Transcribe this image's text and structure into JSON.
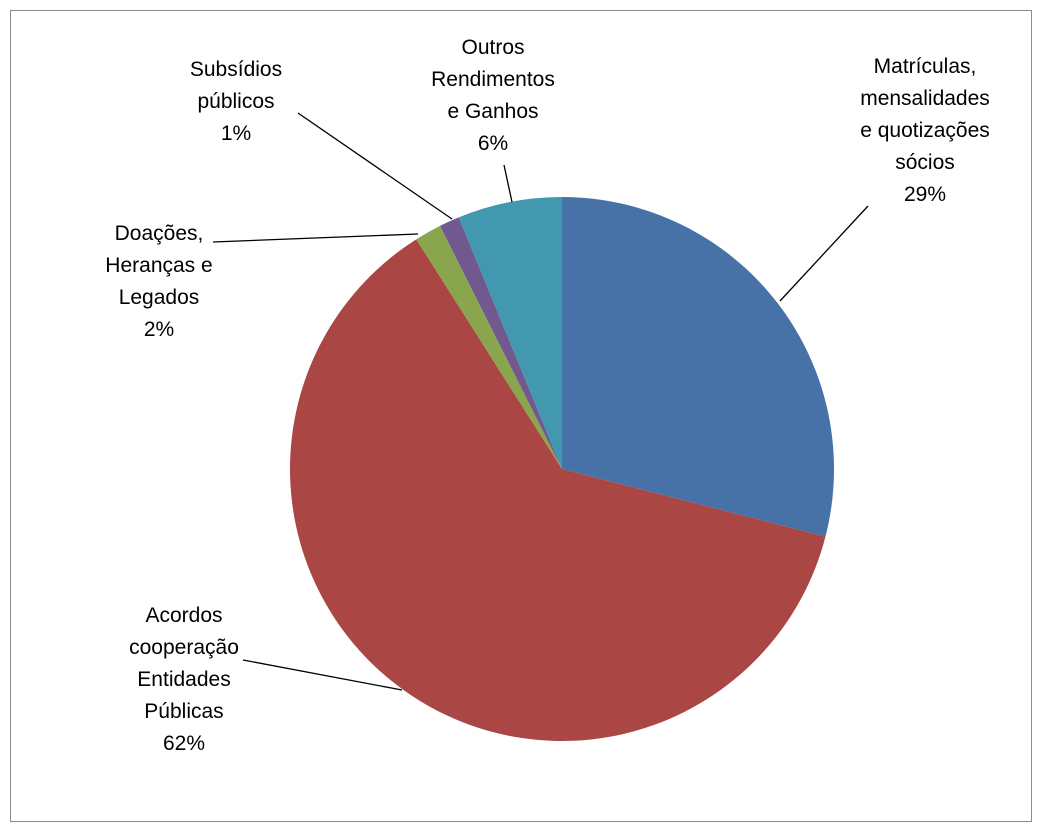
{
  "chart_data": {
    "type": "pie",
    "title": "",
    "slices": [
      {
        "name": "Matrículas, mensalidades e quotizações sócios",
        "label_lines": [
          "Matrículas,",
          "mensalidades",
          "e quotizações",
          "sócios"
        ],
        "pct_label": "29%",
        "value": 29,
        "color": "#4672a8"
      },
      {
        "name": "Acordos cooperação Entidades Públicas",
        "label_lines": [
          "Acordos",
          "cooperação",
          "Entidades",
          "Públicas"
        ],
        "pct_label": "62%",
        "value": 62,
        "color": "#aa4643"
      },
      {
        "name": "Doações, Heranças e Legados",
        "label_lines": [
          "Doações,",
          "Heranças e",
          "Legados"
        ],
        "pct_label": "2%",
        "value": 1.6,
        "color": "#89a54e"
      },
      {
        "name": "Subsídios públicos",
        "label_lines": [
          "Subsídios",
          "públicos"
        ],
        "pct_label": "1%",
        "value": 1.2,
        "color": "#71588f"
      },
      {
        "name": "Outros Rendimentos e Ganhos",
        "label_lines": [
          "Outros",
          "Rendimentos",
          "e Ganhos"
        ],
        "pct_label": "6%",
        "value": 6.2,
        "color": "#4198af"
      }
    ],
    "legend": "none",
    "data_labels": "outside-with-leader-lines"
  }
}
